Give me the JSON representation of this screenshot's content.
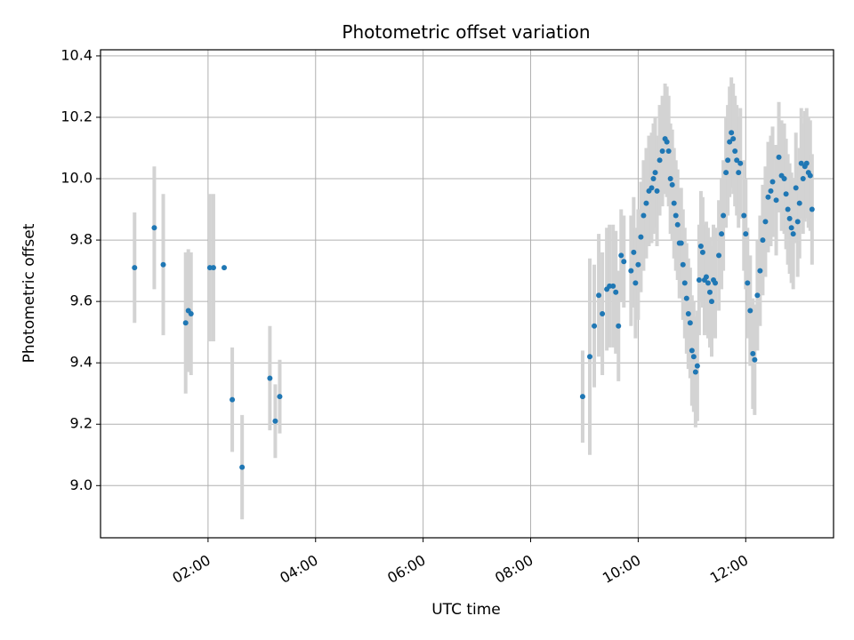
{
  "chart_data": {
    "type": "scatter",
    "title": "Photometric offset variation",
    "xlabel": "UTC time",
    "ylabel": "Photometric offset",
    "x_unit": "UTC hours",
    "xlim": [
      "00:00",
      "13:38"
    ],
    "ylim": [
      8.83,
      10.42
    ],
    "x_ticks": [
      "02:00",
      "04:00",
      "06:00",
      "08:00",
      "10:00",
      "12:00"
    ],
    "y_ticks": [
      "9.0",
      "9.2",
      "9.4",
      "9.6",
      "9.8",
      "10.0",
      "10.2",
      "10.4"
    ],
    "grid": true,
    "legend": false,
    "colors": {
      "marker": "#1f77b4",
      "errorbar": "#d3d3d3",
      "grid": "#b0b0b0"
    },
    "series": [
      {
        "points": [
          {
            "x": "00:38",
            "y": 9.71,
            "err": 0.18
          },
          {
            "x": "01:00",
            "y": 9.84,
            "err": 0.2
          },
          {
            "x": "01:10",
            "y": 9.72,
            "err": 0.23
          },
          {
            "x": "01:35",
            "y": 9.53,
            "err": 0.23
          },
          {
            "x": "01:38",
            "y": 9.57,
            "err": 0.2
          },
          {
            "x": "01:41",
            "y": 9.56,
            "err": 0.2
          },
          {
            "x": "02:02",
            "y": 9.71,
            "err": 0.24
          },
          {
            "x": "02:06",
            "y": 9.71,
            "err": 0.24
          },
          {
            "x": "02:18",
            "y": 9.71,
            "err": 0.0
          },
          {
            "x": "02:27",
            "y": 9.28,
            "err": 0.17
          },
          {
            "x": "02:38",
            "y": 9.06,
            "err": 0.17
          },
          {
            "x": "03:09",
            "y": 9.35,
            "err": 0.17
          },
          {
            "x": "03:15",
            "y": 9.21,
            "err": 0.12
          },
          {
            "x": "03:20",
            "y": 9.29,
            "err": 0.12
          },
          {
            "x": "08:58",
            "y": 9.29,
            "err": 0.15
          },
          {
            "x": "09:06",
            "y": 9.42,
            "err": 0.32
          },
          {
            "x": "09:11",
            "y": 9.52,
            "err": 0.2
          },
          {
            "x": "09:16",
            "y": 9.62,
            "err": 0.2
          },
          {
            "x": "09:20",
            "y": 9.56,
            "err": 0.2
          },
          {
            "x": "09:25",
            "y": 9.64,
            "err": 0.2
          },
          {
            "x": "09:28",
            "y": 9.65,
            "err": 0.2
          },
          {
            "x": "09:32",
            "y": 9.65,
            "err": 0.2
          },
          {
            "x": "09:35",
            "y": 9.63,
            "err": 0.2
          },
          {
            "x": "09:38",
            "y": 9.52,
            "err": 0.18
          },
          {
            "x": "09:41",
            "y": 9.75,
            "err": 0.15
          },
          {
            "x": "09:44",
            "y": 9.73,
            "err": 0.15
          },
          {
            "x": "09:52",
            "y": 9.7,
            "err": 0.18
          },
          {
            "x": "09:55",
            "y": 9.76,
            "err": 0.18
          },
          {
            "x": "09:57",
            "y": 9.66,
            "err": 0.18
          },
          {
            "x": "10:00",
            "y": 9.72,
            "err": 0.18
          },
          {
            "x": "10:03",
            "y": 9.81,
            "err": 0.18
          },
          {
            "x": "10:06",
            "y": 9.88,
            "err": 0.18
          },
          {
            "x": "10:09",
            "y": 9.92,
            "err": 0.18
          },
          {
            "x": "10:12",
            "y": 9.96,
            "err": 0.18
          },
          {
            "x": "10:15",
            "y": 9.97,
            "err": 0.18
          },
          {
            "x": "10:17",
            "y": 10.0,
            "err": 0.18
          },
          {
            "x": "10:19",
            "y": 10.02,
            "err": 0.18
          },
          {
            "x": "10:21",
            "y": 9.96,
            "err": 0.18
          },
          {
            "x": "10:24",
            "y": 10.06,
            "err": 0.18
          },
          {
            "x": "10:27",
            "y": 10.09,
            "err": 0.18
          },
          {
            "x": "10:30",
            "y": 10.13,
            "err": 0.18
          },
          {
            "x": "10:32",
            "y": 10.12,
            "err": 0.18
          },
          {
            "x": "10:34",
            "y": 10.09,
            "err": 0.18
          },
          {
            "x": "10:36",
            "y": 10.0,
            "err": 0.18
          },
          {
            "x": "10:38",
            "y": 9.98,
            "err": 0.18
          },
          {
            "x": "10:40",
            "y": 9.92,
            "err": 0.18
          },
          {
            "x": "10:42",
            "y": 9.88,
            "err": 0.18
          },
          {
            "x": "10:44",
            "y": 9.85,
            "err": 0.18
          },
          {
            "x": "10:46",
            "y": 9.79,
            "err": 0.18
          },
          {
            "x": "10:48",
            "y": 9.79,
            "err": 0.18
          },
          {
            "x": "10:50",
            "y": 9.72,
            "err": 0.18
          },
          {
            "x": "10:52",
            "y": 9.66,
            "err": 0.18
          },
          {
            "x": "10:54",
            "y": 9.61,
            "err": 0.18
          },
          {
            "x": "10:56",
            "y": 9.56,
            "err": 0.18
          },
          {
            "x": "10:58",
            "y": 9.53,
            "err": 0.18
          },
          {
            "x": "11:00",
            "y": 9.44,
            "err": 0.18
          },
          {
            "x": "11:02",
            "y": 9.42,
            "err": 0.18
          },
          {
            "x": "11:04",
            "y": 9.37,
            "err": 0.18
          },
          {
            "x": "11:06",
            "y": 9.39,
            "err": 0.18
          },
          {
            "x": "11:08",
            "y": 9.67,
            "err": 0.18
          },
          {
            "x": "11:10",
            "y": 9.78,
            "err": 0.18
          },
          {
            "x": "11:12",
            "y": 9.76,
            "err": 0.18
          },
          {
            "x": "11:14",
            "y": 9.67,
            "err": 0.18
          },
          {
            "x": "11:16",
            "y": 9.68,
            "err": 0.18
          },
          {
            "x": "11:18",
            "y": 9.66,
            "err": 0.18
          },
          {
            "x": "11:20",
            "y": 9.63,
            "err": 0.18
          },
          {
            "x": "11:22",
            "y": 9.6,
            "err": 0.18
          },
          {
            "x": "11:24",
            "y": 9.67,
            "err": 0.18
          },
          {
            "x": "11:26",
            "y": 9.66,
            "err": 0.18
          },
          {
            "x": "11:30",
            "y": 9.75,
            "err": 0.18
          },
          {
            "x": "11:33",
            "y": 9.82,
            "err": 0.18
          },
          {
            "x": "11:35",
            "y": 9.88,
            "err": 0.18
          },
          {
            "x": "11:38",
            "y": 10.02,
            "err": 0.18
          },
          {
            "x": "11:40",
            "y": 10.06,
            "err": 0.18
          },
          {
            "x": "11:42",
            "y": 10.12,
            "err": 0.18
          },
          {
            "x": "11:44",
            "y": 10.15,
            "err": 0.18
          },
          {
            "x": "11:46",
            "y": 10.13,
            "err": 0.18
          },
          {
            "x": "11:48",
            "y": 10.09,
            "err": 0.18
          },
          {
            "x": "11:50",
            "y": 10.06,
            "err": 0.18
          },
          {
            "x": "11:52",
            "y": 10.02,
            "err": 0.18
          },
          {
            "x": "11:54",
            "y": 10.05,
            "err": 0.18
          },
          {
            "x": "11:58",
            "y": 9.88,
            "err": 0.18
          },
          {
            "x": "12:00",
            "y": 9.82,
            "err": 0.18
          },
          {
            "x": "12:02",
            "y": 9.66,
            "err": 0.18
          },
          {
            "x": "12:05",
            "y": 9.57,
            "err": 0.18
          },
          {
            "x": "12:08",
            "y": 9.43,
            "err": 0.18
          },
          {
            "x": "12:10",
            "y": 9.41,
            "err": 0.18
          },
          {
            "x": "12:13",
            "y": 9.62,
            "err": 0.18
          },
          {
            "x": "12:16",
            "y": 9.7,
            "err": 0.18
          },
          {
            "x": "12:19",
            "y": 9.8,
            "err": 0.18
          },
          {
            "x": "12:22",
            "y": 9.86,
            "err": 0.18
          },
          {
            "x": "12:25",
            "y": 9.94,
            "err": 0.18
          },
          {
            "x": "12:28",
            "y": 9.96,
            "err": 0.18
          },
          {
            "x": "12:30",
            "y": 9.99,
            "err": 0.18
          },
          {
            "x": "12:34",
            "y": 9.93,
            "err": 0.18
          },
          {
            "x": "12:37",
            "y": 10.07,
            "err": 0.18
          },
          {
            "x": "12:40",
            "y": 10.01,
            "err": 0.18
          },
          {
            "x": "12:43",
            "y": 10.0,
            "err": 0.18
          },
          {
            "x": "12:45",
            "y": 9.95,
            "err": 0.18
          },
          {
            "x": "12:47",
            "y": 9.9,
            "err": 0.18
          },
          {
            "x": "12:49",
            "y": 9.87,
            "err": 0.18
          },
          {
            "x": "12:51",
            "y": 9.84,
            "err": 0.18
          },
          {
            "x": "12:53",
            "y": 9.82,
            "err": 0.18
          },
          {
            "x": "12:56",
            "y": 9.97,
            "err": 0.18
          },
          {
            "x": "12:58",
            "y": 9.86,
            "err": 0.18
          },
          {
            "x": "13:00",
            "y": 9.92,
            "err": 0.18
          },
          {
            "x": "13:02",
            "y": 10.05,
            "err": 0.18
          },
          {
            "x": "13:04",
            "y": 10.0,
            "err": 0.18
          },
          {
            "x": "13:06",
            "y": 10.04,
            "err": 0.18
          },
          {
            "x": "13:08",
            "y": 10.05,
            "err": 0.18
          },
          {
            "x": "13:10",
            "y": 10.02,
            "err": 0.18
          },
          {
            "x": "13:12",
            "y": 10.01,
            "err": 0.18
          },
          {
            "x": "13:14",
            "y": 9.9,
            "err": 0.18
          }
        ]
      }
    ]
  }
}
